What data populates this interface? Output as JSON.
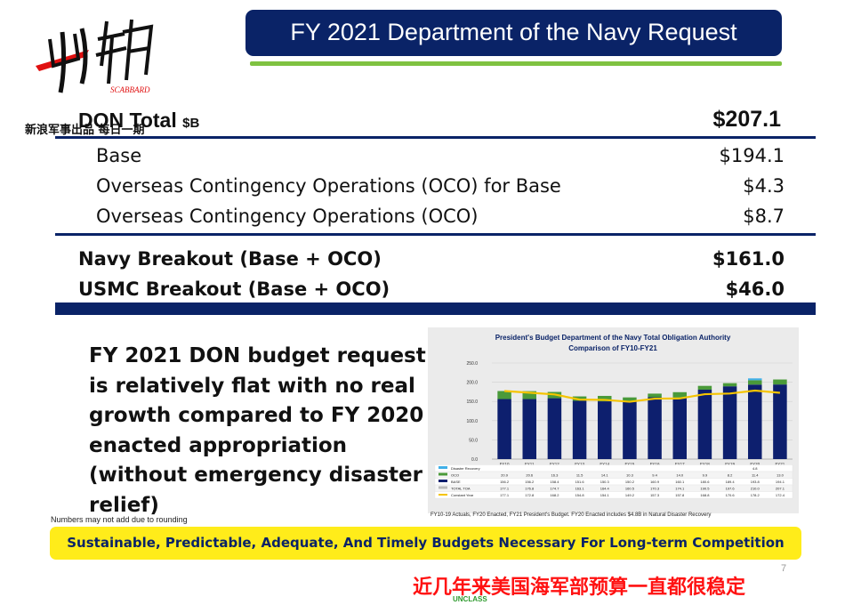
{
  "logo": {
    "sub_text": "SCABBARD",
    "caption": "新浪军事出品 每日一期"
  },
  "title": "FY 2021 Department of the Navy Request",
  "colors": {
    "navy": "#0a2367",
    "green": "#7fc241",
    "yellow": "#ffec1a",
    "red": "#ff1111"
  },
  "table": {
    "total_label": "DON Total",
    "total_unit": "$B",
    "total_value": "$207.1",
    "rows": [
      {
        "label": "Base",
        "value": "$194.1"
      },
      {
        "label": "Overseas Contingency Operations (OCO) for Base",
        "value": "$4.3"
      },
      {
        "label": "Overseas Contingency Operations (OCO)",
        "value": "$8.7"
      }
    ],
    "breakouts": [
      {
        "label": "Navy Breakout (Base + OCO)",
        "value": "$161.0"
      },
      {
        "label": "USMC Breakout (Base + OCO)",
        "value": "$46.0"
      }
    ]
  },
  "statement": "FY 2021 DON budget request is relatively flat with no real growth compared to FY 2020 enacted appropriation (without emergency disaster relief)",
  "chart_data": {
    "type": "bar",
    "title": "President's Budget Department of the Navy Total Obligation Authority",
    "subtitle": "Comparison of FY10-FY21",
    "categories": [
      "FY10",
      "FY11",
      "FY12",
      "FY13",
      "FY14",
      "FY15",
      "FY16",
      "FY17",
      "FY18",
      "FY19",
      "FY20",
      "FY21"
    ],
    "ylim": [
      0,
      250
    ],
    "yticks": [
      "0.0",
      "50.0",
      "100.0",
      "150.0",
      "200.0",
      "250.0"
    ],
    "series": [
      {
        "name": "Disaster Recovery",
        "color": "#41b0e8",
        "values": [
          "",
          "",
          "",
          "",
          "",
          "",
          "",
          "",
          "",
          "",
          "4.8",
          ""
        ]
      },
      {
        "name": "OCO",
        "color": "#4a9a3a",
        "values": [
          "20.9",
          "20.6",
          "16.3",
          "11.5",
          "14.1",
          "10.3",
          "9.4",
          "14.0",
          "9.9",
          "8.2",
          "11.4",
          "13.0"
        ]
      },
      {
        "name": "BASE",
        "color": "#0d1f6e",
        "values": [
          "156.2",
          "156.2",
          "158.4",
          "151.6",
          "150.3",
          "150.2",
          "160.9",
          "160.1",
          "180.6",
          "189.4",
          "193.8",
          "194.1"
        ]
      },
      {
        "name": "TOTAL TOA",
        "color": "#bbbbbb",
        "values": [
          "177.1",
          "176.8",
          "174.7",
          "163.1",
          "164.4",
          "160.5",
          "170.3",
          "174.1",
          "190.5",
          "197.6",
          "210.0",
          "207.1"
        ]
      },
      {
        "name": "Constant Year",
        "color": "#f5c400",
        "values": [
          "177.1",
          "172.8",
          "168.2",
          "154.8",
          "154.1",
          "149.2",
          "157.3",
          "157.8",
          "168.8",
          "170.6",
          "178.2",
          "172.4"
        ]
      }
    ],
    "note": "FY10-19 Actuals, FY20 Enacted, FY21 President's Budget. FY20 Enacted includes $4.8B in Natural Disaster Recovery"
  },
  "footnote": "Numbers may not add due to rounding",
  "banner": "Sustainable, Predictable, Adequate, And Timely Budgets Necessary For  Long-term Competition",
  "page_number": "7",
  "caption_cn": "近几年来美国海军部预算一直都很稳定",
  "classification": "UNCLASS"
}
